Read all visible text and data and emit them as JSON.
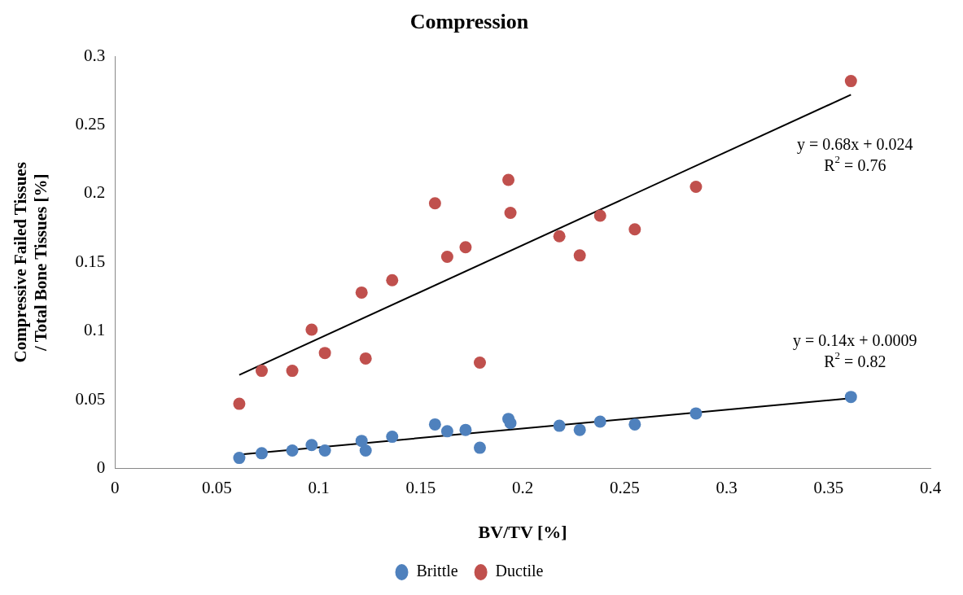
{
  "chart_data": {
    "type": "scatter",
    "title": "Compression",
    "xlabel": "BV/TV [%]",
    "ylabel": "Compressive Failed Tissues / Total Bone Tissues [%]",
    "x": [
      0.061,
      0.072,
      0.087,
      0.0965,
      0.103,
      0.121,
      0.123,
      0.136,
      0.157,
      0.163,
      0.172,
      0.179,
      0.193,
      0.194,
      0.218,
      0.228,
      0.238,
      0.255,
      0.285,
      0.361
    ],
    "series": [
      {
        "name": "Brittle",
        "color": "#4f81bd",
        "values": [
          0.0076,
          0.011,
          0.013,
          0.017,
          0.013,
          0.02,
          0.013,
          0.023,
          0.032,
          0.027,
          0.028,
          0.015,
          0.036,
          0.033,
          0.031,
          0.028,
          0.034,
          0.032,
          0.04,
          0.052
        ]
      },
      {
        "name": "Ductile",
        "color": "#c0504d",
        "values": [
          0.047,
          0.071,
          0.071,
          0.101,
          0.084,
          0.128,
          0.08,
          0.137,
          0.193,
          0.154,
          0.161,
          0.077,
          0.21,
          0.186,
          0.169,
          0.155,
          0.184,
          0.174,
          0.205,
          0.282
        ]
      },
      {
        "type": "line",
        "color": "#000000",
        "values": [
          0.068,
          null,
          null,
          null,
          null,
          null,
          null,
          null,
          null,
          null,
          null,
          null,
          null,
          null,
          null,
          null,
          null,
          null,
          null,
          0.272
        ],
        "marker": "none"
      },
      {
        "type": "line",
        "color": "#000000",
        "values": [
          0.01,
          null,
          null,
          null,
          null,
          null,
          null,
          null,
          null,
          null,
          null,
          null,
          null,
          null,
          null,
          null,
          null,
          null,
          null,
          0.051
        ],
        "marker": "none"
      }
    ],
    "annotations": [
      "y = 0.68x + 0.024",
      "R$^{2}$ = 0.76",
      "y = 0.14x + 0.0009",
      "R$^{2}$ = 0.82"
    ],
    "xlim": [
      0,
      0.4
    ],
    "xticks": [
      0,
      0.05,
      0.1,
      0.15,
      0.2,
      0.25,
      0.3,
      0.35,
      0.4
    ],
    "ylim": [
      0,
      0.3
    ],
    "yticks": [
      0,
      0.05,
      0.1,
      0.15,
      0.2,
      0.25,
      0.3
    ],
    "grid": false,
    "legend": "bottom",
    "marker": "circle"
  }
}
